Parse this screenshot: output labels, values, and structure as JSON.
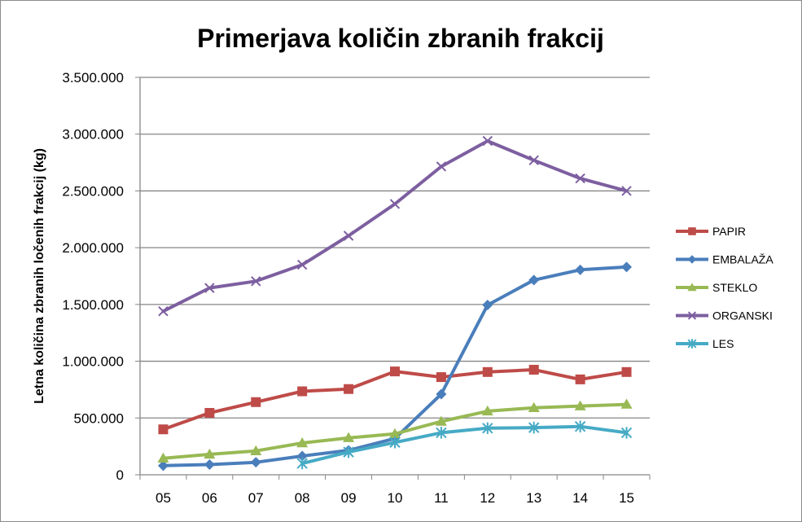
{
  "chart_data": {
    "type": "line",
    "title": "Primerjava količin zbranih frakcij",
    "xlabel": "",
    "ylabel": "Letna količina zbranih ločenih frakcij (kg)",
    "categories": [
      "05",
      "06",
      "07",
      "08",
      "09",
      "10",
      "11",
      "12",
      "13",
      "14",
      "15"
    ],
    "ylim": [
      0,
      3500000
    ],
    "yticks": [
      0,
      500000,
      1000000,
      1500000,
      2000000,
      2500000,
      3000000,
      3500000
    ],
    "ytick_labels": [
      "0",
      "500.000",
      "1.000.000",
      "1.500.000",
      "2.000.000",
      "2.500.000",
      "3.000.000",
      "3.500.000"
    ],
    "grid": true,
    "legend_position": "right",
    "series": [
      {
        "name": "PAPIR",
        "color": "#be4b48",
        "marker": "square",
        "values": [
          400000,
          545000,
          640000,
          735000,
          755000,
          910000,
          860000,
          905000,
          925000,
          840000,
          905000
        ]
      },
      {
        "name": "EMBALAŽA",
        "color": "#4a7ebb",
        "marker": "diamond",
        "values": [
          80000,
          90000,
          110000,
          165000,
          215000,
          320000,
          710000,
          1495000,
          1715000,
          1805000,
          1830000
        ]
      },
      {
        "name": "STEKLO",
        "color": "#98b954",
        "marker": "triangle",
        "values": [
          145000,
          180000,
          210000,
          280000,
          325000,
          360000,
          470000,
          560000,
          590000,
          605000,
          620000
        ]
      },
      {
        "name": "ORGANSKI",
        "color": "#7d5fa0",
        "marker": "x",
        "values": [
          1440000,
          1645000,
          1705000,
          1850000,
          2105000,
          2385000,
          2715000,
          2940000,
          2770000,
          2610000,
          2500000
        ]
      },
      {
        "name": "LES",
        "color": "#46aac5",
        "marker": "star",
        "values": [
          null,
          null,
          null,
          100000,
          200000,
          285000,
          370000,
          410000,
          415000,
          425000,
          370000
        ]
      }
    ]
  }
}
